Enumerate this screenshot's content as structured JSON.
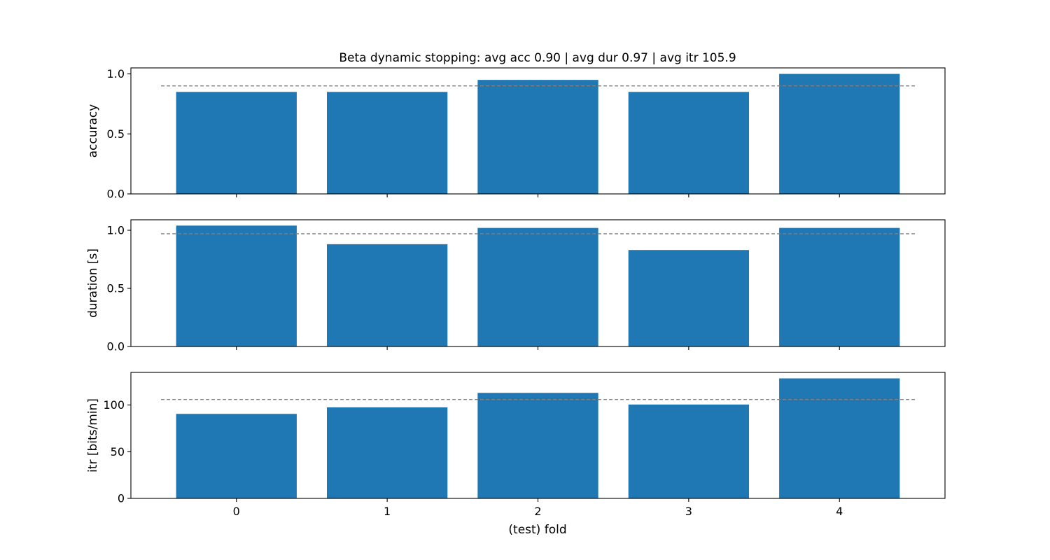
{
  "title": "Beta dynamic stopping: avg acc 0.90 | avg dur 0.97 | avg itr 105.9",
  "xlabel": "(test) fold",
  "colors": {
    "bar": "#1f77b4",
    "mean_line": "#808080",
    "axes": "#000000"
  },
  "chart_data": [
    {
      "type": "bar",
      "categories": [
        "0",
        "1",
        "2",
        "3",
        "4"
      ],
      "values": [
        0.85,
        0.85,
        0.95,
        0.85,
        1.0
      ],
      "mean": 0.9,
      "ylabel": "accuracy",
      "ylim": [
        0,
        1.05
      ],
      "yticks": [
        0.0,
        0.5,
        1.0
      ],
      "ytick_labels": [
        "0.0",
        "0.5",
        "1.0"
      ],
      "show_xtick_labels": false
    },
    {
      "type": "bar",
      "categories": [
        "0",
        "1",
        "2",
        "3",
        "4"
      ],
      "values": [
        1.04,
        0.88,
        1.02,
        0.83,
        1.02
      ],
      "mean": 0.97,
      "ylabel": "duration [s]",
      "ylim": [
        0,
        1.09
      ],
      "yticks": [
        0.0,
        0.5,
        1.0
      ],
      "ytick_labels": [
        "0.0",
        "0.5",
        "1.0"
      ],
      "show_xtick_labels": false
    },
    {
      "type": "bar",
      "categories": [
        "0",
        "1",
        "2",
        "3",
        "4"
      ],
      "values": [
        90.5,
        97.5,
        113.0,
        100.5,
        128.5
      ],
      "mean": 105.9,
      "ylabel": "itr [bits/min]",
      "ylim": [
        0,
        134.9
      ],
      "yticks": [
        0,
        50,
        100
      ],
      "ytick_labels": [
        "0",
        "50",
        "100"
      ],
      "show_xtick_labels": true
    }
  ]
}
